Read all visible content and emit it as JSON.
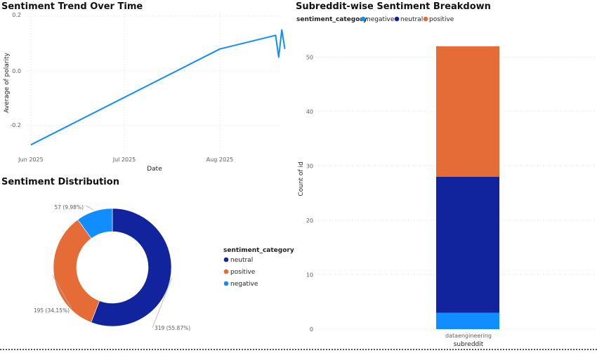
{
  "colors": {
    "negative": "#118dff",
    "neutral": "#12239e",
    "positive": "#e66c37",
    "line": "#118dff"
  },
  "chart_data": [
    {
      "type": "line",
      "title": "Sentiment Trend Over Time",
      "xlabel": "Date",
      "ylabel": "Average of polarity",
      "x_ticks": [
        "Jun 2025",
        "Jul 2025",
        "Aug 2025"
      ],
      "y_ticks": [
        "0.2",
        "0.0",
        "-0.2"
      ],
      "ylim": [
        -0.3,
        0.2
      ],
      "x": [
        "2025-06-01",
        "2025-08-01",
        "2025-08-19",
        "2025-08-20",
        "2025-08-21",
        "2025-08-22"
      ],
      "y": [
        -0.27,
        0.08,
        0.13,
        0.05,
        0.15,
        0.08
      ],
      "grid": true
    },
    {
      "type": "pie",
      "title": "Sentiment Distribution",
      "legend_title": "sentiment_category",
      "legend_position": "right",
      "slices": [
        {
          "label": "neutral",
          "value": 319,
          "data_label": "319 (55.87%)"
        },
        {
          "label": "positive",
          "value": 195,
          "data_label": "195 (34.15%)"
        },
        {
          "label": "negative",
          "value": 57,
          "data_label": "57 (9.98%)"
        }
      ]
    },
    {
      "type": "bar",
      "title": "Subreddit-wise Sentiment Breakdown",
      "legend_title": "sentiment_category",
      "legend_position": "top-left",
      "legend": [
        "negative",
        "neutral",
        "positive"
      ],
      "categories": [
        "dataengineering"
      ],
      "xlabel": "subreddit",
      "ylabel": "Count of id",
      "y_ticks": [
        "0",
        "10",
        "20",
        "30",
        "40",
        "50"
      ],
      "ylim": [
        0,
        55
      ],
      "stacked": true,
      "series": [
        {
          "name": "negative",
          "values": [
            3
          ]
        },
        {
          "name": "neutral",
          "values": [
            25
          ]
        },
        {
          "name": "positive",
          "values": [
            24
          ]
        }
      ],
      "grid": true
    }
  ]
}
